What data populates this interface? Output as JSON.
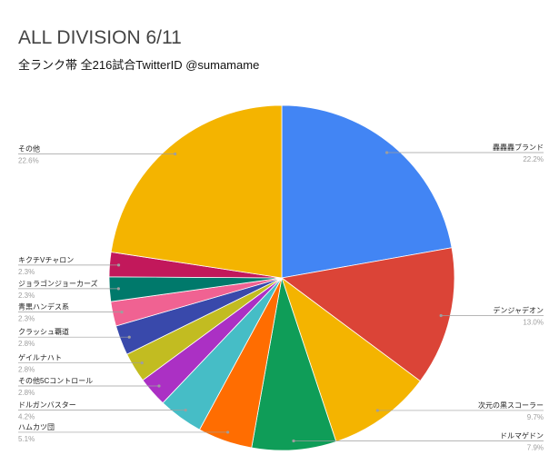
{
  "chart_data": {
    "type": "pie",
    "title": "ALL DIVISION 6/11",
    "subtitle": "全ランク帯 全216試合TwitterID @sumamame",
    "slices": [
      {
        "label": "轟轟轟ブランド",
        "value": 22.2,
        "color": "#4285f4"
      },
      {
        "label": "デンジャデオン",
        "value": 13.0,
        "color": "#db4437"
      },
      {
        "label": "次元の黒スコーラー",
        "value": 9.7,
        "color": "#f4b400"
      },
      {
        "label": "ドルマゲドン",
        "value": 7.9,
        "color": "#0f9d58"
      },
      {
        "label": "ハムカツ団",
        "value": 5.1,
        "color": "#ff6d01"
      },
      {
        "label": "ドルガンバスター",
        "value": 4.2,
        "color": "#46bdc6"
      },
      {
        "label": "その他5Cコントロール",
        "value": 2.8,
        "color": "#ab30c4"
      },
      {
        "label": "ゲイルナハト",
        "value": 2.8,
        "color": "#c2bc21"
      },
      {
        "label": "クラッシュ覇道",
        "value": 2.8,
        "color": "#3949ab"
      },
      {
        "label": "青黒ハンデス系",
        "value": 2.3,
        "color": "#f06292"
      },
      {
        "label": "ジョラゴンジョーカーズ",
        "value": 2.3,
        "color": "#00796b"
      },
      {
        "label": "キクチVチャロン",
        "value": 2.3,
        "color": "#c2185b"
      },
      {
        "label": "その他",
        "value": 22.6,
        "color": "#f4b400"
      }
    ]
  }
}
